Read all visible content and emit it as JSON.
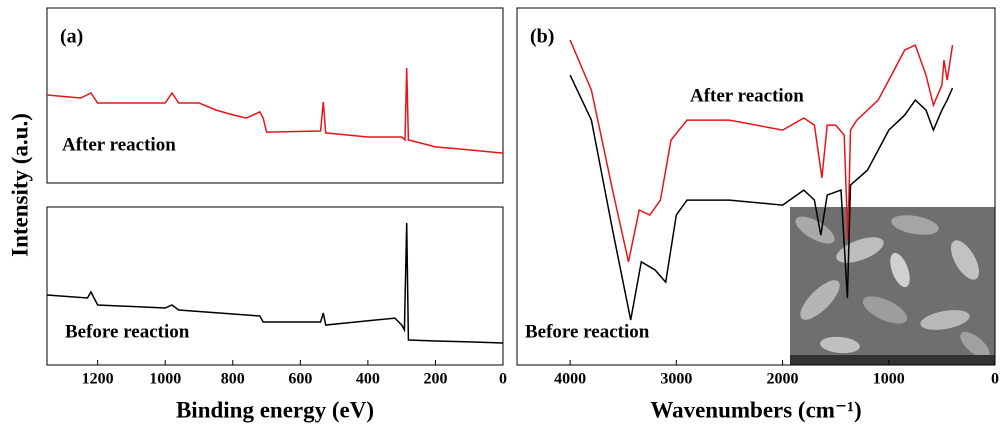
{
  "chart_data": [
    {
      "type": "line",
      "panel": "(a)",
      "ylabel": "Intensity (a.u.)",
      "xlim": [
        1350,
        0
      ],
      "ylim": [
        0,
        100
      ],
      "x": [
        1350,
        1250,
        1220,
        1200,
        1000,
        980,
        960,
        900,
        850,
        800,
        760,
        720,
        710,
        700,
        540,
        532,
        525,
        400,
        300,
        290,
        285,
        280,
        200,
        100,
        0
      ],
      "series": [
        {
          "name": "After reaction",
          "color": "#e8141b",
          "values": [
            50.3,
            48.6,
            51.4,
            45.7,
            45.7,
            51.4,
            45.7,
            45.7,
            41.7,
            38.9,
            37.1,
            40.6,
            37.1,
            29.1,
            29.7,
            46.3,
            28.6,
            26.3,
            26.3,
            24.6,
            65.7,
            24.6,
            20.6,
            18.9,
            17.1
          ]
        }
      ]
    },
    {
      "type": "line",
      "xlabel": "Binding energy (eV)",
      "xlim": [
        1350,
        0
      ],
      "ylim": [
        0,
        100
      ],
      "xticks": [
        1200,
        1000,
        800,
        600,
        400,
        200,
        0
      ],
      "x": [
        1350,
        1230,
        1220,
        1200,
        1000,
        980,
        960,
        720,
        710,
        540,
        532,
        525,
        320,
        300,
        292,
        285,
        280,
        200,
        100,
        0
      ],
      "series": [
        {
          "name": "Before reaction",
          "color": "#000000",
          "values": [
            44.3,
            42.4,
            46.2,
            38.0,
            36.1,
            38.0,
            34.8,
            31.0,
            27.2,
            27.2,
            32.9,
            25.3,
            29.7,
            25.3,
            22.2,
            89.9,
            15.8,
            15.2,
            14.6,
            13.9
          ]
        }
      ]
    },
    {
      "type": "line",
      "panel": "(b)",
      "xlabel": "Wavenumbers (cm⁻¹)",
      "xlim": [
        4500,
        0
      ],
      "ylim": [
        0,
        100
      ],
      "xticks": [
        4000,
        3000,
        2000,
        1000,
        0
      ],
      "series": [
        {
          "name": "After reaction",
          "color": "#e8141b",
          "x": [
            4000,
            3800,
            3600,
            3450,
            3350,
            3250,
            3150,
            3050,
            2900,
            2500,
            2000,
            1800,
            1700,
            1630,
            1580,
            1500,
            1420,
            1385,
            1360,
            1300,
            1100,
            1000,
            850,
            750,
            650,
            580,
            500,
            480,
            450,
            400
          ],
          "values": [
            91.0,
            77.0,
            49.0,
            28.9,
            43.4,
            42.0,
            46.2,
            63.0,
            68.6,
            68.6,
            65.8,
            69.2,
            67.2,
            52.4,
            67.2,
            67.2,
            64.4,
            35.0,
            65.8,
            68.6,
            74.2,
            79.8,
            88.2,
            89.6,
            81.2,
            72.8,
            78.4,
            85.4,
            79.8,
            89.6
          ]
        },
        {
          "name": "Before reaction",
          "color": "#000000",
          "x": [
            4000,
            3800,
            3600,
            3430,
            3330,
            3200,
            3100,
            3000,
            2900,
            2500,
            2000,
            1800,
            1700,
            1640,
            1580,
            1450,
            1390,
            1360,
            1200,
            1100,
            1000,
            850,
            750,
            650,
            580,
            500,
            450,
            400
          ],
          "values": [
            81.2,
            68.6,
            37.8,
            12.6,
            28.9,
            26.6,
            23.2,
            42.0,
            46.2,
            46.2,
            44.8,
            49.0,
            46.2,
            36.4,
            47.6,
            49.0,
            18.8,
            50.4,
            54.6,
            60.2,
            65.8,
            70.0,
            74.2,
            71.4,
            65.8,
            71.4,
            74.2,
            77.6
          ]
        }
      ]
    }
  ]
}
